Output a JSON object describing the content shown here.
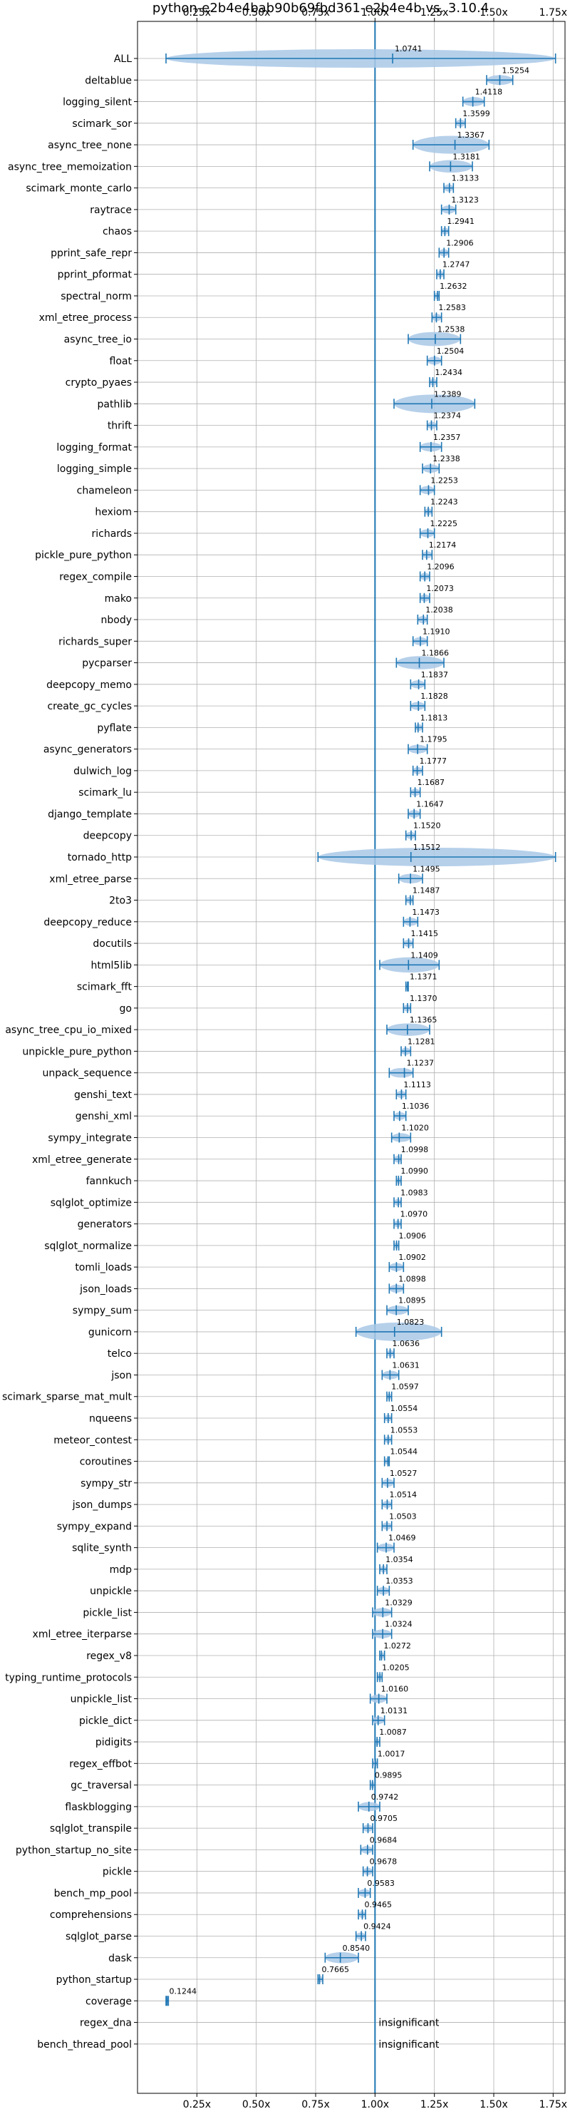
{
  "chart_data": {
    "type": "violin",
    "title": "python-e2b4e4bab90b69fbd361-e2b4e4b vs. 3.10.4",
    "xlabel": "",
    "ylabel": "",
    "xlim": [
      0.0,
      1.8
    ],
    "xticks": [
      0.25,
      0.5,
      0.75,
      1.0,
      1.25,
      1.5,
      1.75
    ],
    "xtick_labels": [
      "0.25x",
      "0.50x",
      "0.75x",
      "1.00x",
      "1.25x",
      "1.50x",
      "1.75x"
    ],
    "grid": true,
    "reference_line": 1.0,
    "colors": {
      "primary": "#1f77b4",
      "fill": "#a9c8e6",
      "grid": "#b0b0b0"
    },
    "insignificant_text": "insignificant",
    "rows": [
      {
        "name": "ALL",
        "value": 1.0741,
        "label": "1.0741",
        "min": 0.12,
        "max": 1.76
      },
      {
        "name": "deltablue",
        "value": 1.5254,
        "label": "1.5254",
        "min": 1.47,
        "max": 1.58
      },
      {
        "name": "logging_silent",
        "value": 1.4118,
        "label": "1.4118",
        "min": 1.37,
        "max": 1.46
      },
      {
        "name": "scimark_sor",
        "value": 1.3599,
        "label": "1.3599",
        "min": 1.34,
        "max": 1.38
      },
      {
        "name": "async_tree_none",
        "value": 1.3367,
        "label": "1.3367",
        "min": 1.16,
        "max": 1.48
      },
      {
        "name": "async_tree_memoization",
        "value": 1.3181,
        "label": "1.3181",
        "min": 1.23,
        "max": 1.41
      },
      {
        "name": "scimark_monte_carlo",
        "value": 1.3133,
        "label": "1.3133",
        "min": 1.29,
        "max": 1.33
      },
      {
        "name": "raytrace",
        "value": 1.3123,
        "label": "1.3123",
        "min": 1.28,
        "max": 1.34
      },
      {
        "name": "chaos",
        "value": 1.2941,
        "label": "1.2941",
        "min": 1.28,
        "max": 1.31
      },
      {
        "name": "pprint_safe_repr",
        "value": 1.2906,
        "label": "1.2906",
        "min": 1.27,
        "max": 1.31
      },
      {
        "name": "pprint_pformat",
        "value": 1.2747,
        "label": "1.2747",
        "min": 1.26,
        "max": 1.29
      },
      {
        "name": "spectral_norm",
        "value": 1.2632,
        "label": "1.2632",
        "min": 1.25,
        "max": 1.27
      },
      {
        "name": "xml_etree_process",
        "value": 1.2583,
        "label": "1.2583",
        "min": 1.24,
        "max": 1.28
      },
      {
        "name": "async_tree_io",
        "value": 1.2538,
        "label": "1.2538",
        "min": 1.14,
        "max": 1.36
      },
      {
        "name": "float",
        "value": 1.2504,
        "label": "1.2504",
        "min": 1.22,
        "max": 1.28
      },
      {
        "name": "crypto_pyaes",
        "value": 1.2434,
        "label": "1.2434",
        "min": 1.23,
        "max": 1.26
      },
      {
        "name": "pathlib",
        "value": 1.2389,
        "label": "1.2389",
        "min": 1.08,
        "max": 1.42
      },
      {
        "name": "thrift",
        "value": 1.2374,
        "label": "1.2374",
        "min": 1.22,
        "max": 1.26
      },
      {
        "name": "logging_format",
        "value": 1.2357,
        "label": "1.2357",
        "min": 1.19,
        "max": 1.28
      },
      {
        "name": "logging_simple",
        "value": 1.2338,
        "label": "1.2338",
        "min": 1.2,
        "max": 1.27
      },
      {
        "name": "chameleon",
        "value": 1.2253,
        "label": "1.2253",
        "min": 1.19,
        "max": 1.25
      },
      {
        "name": "hexiom",
        "value": 1.2243,
        "label": "1.2243",
        "min": 1.21,
        "max": 1.24
      },
      {
        "name": "richards",
        "value": 1.2225,
        "label": "1.2225",
        "min": 1.19,
        "max": 1.25
      },
      {
        "name": "pickle_pure_python",
        "value": 1.2174,
        "label": "1.2174",
        "min": 1.2,
        "max": 1.24
      },
      {
        "name": "regex_compile",
        "value": 1.2096,
        "label": "1.2096",
        "min": 1.19,
        "max": 1.23
      },
      {
        "name": "mako",
        "value": 1.2073,
        "label": "1.2073",
        "min": 1.19,
        "max": 1.23
      },
      {
        "name": "nbody",
        "value": 1.2038,
        "label": "1.2038",
        "min": 1.18,
        "max": 1.22
      },
      {
        "name": "richards_super",
        "value": 1.191,
        "label": "1.1910",
        "min": 1.16,
        "max": 1.22
      },
      {
        "name": "pycparser",
        "value": 1.1866,
        "label": "1.1866",
        "min": 1.09,
        "max": 1.29
      },
      {
        "name": "deepcopy_memo",
        "value": 1.1837,
        "label": "1.1837",
        "min": 1.15,
        "max": 1.21
      },
      {
        "name": "create_gc_cycles",
        "value": 1.1828,
        "label": "1.1828",
        "min": 1.15,
        "max": 1.21
      },
      {
        "name": "pyflate",
        "value": 1.1813,
        "label": "1.1813",
        "min": 1.17,
        "max": 1.2
      },
      {
        "name": "async_generators",
        "value": 1.1795,
        "label": "1.1795",
        "min": 1.14,
        "max": 1.22
      },
      {
        "name": "dulwich_log",
        "value": 1.1777,
        "label": "1.1777",
        "min": 1.16,
        "max": 1.2
      },
      {
        "name": "scimark_lu",
        "value": 1.1687,
        "label": "1.1687",
        "min": 1.15,
        "max": 1.19
      },
      {
        "name": "django_template",
        "value": 1.1647,
        "label": "1.1647",
        "min": 1.14,
        "max": 1.19
      },
      {
        "name": "deepcopy",
        "value": 1.152,
        "label": "1.1520",
        "min": 1.13,
        "max": 1.17
      },
      {
        "name": "tornado_http",
        "value": 1.1512,
        "label": "1.1512",
        "min": 0.76,
        "max": 1.76
      },
      {
        "name": "xml_etree_parse",
        "value": 1.1495,
        "label": "1.1495",
        "min": 1.1,
        "max": 1.2
      },
      {
        "name": "2to3",
        "value": 1.1487,
        "label": "1.1487",
        "min": 1.13,
        "max": 1.16
      },
      {
        "name": "deepcopy_reduce",
        "value": 1.1473,
        "label": "1.1473",
        "min": 1.12,
        "max": 1.18
      },
      {
        "name": "docutils",
        "value": 1.1415,
        "label": "1.1415",
        "min": 1.12,
        "max": 1.16
      },
      {
        "name": "html5lib",
        "value": 1.1409,
        "label": "1.1409",
        "min": 1.02,
        "max": 1.27
      },
      {
        "name": "scimark_fft",
        "value": 1.1371,
        "label": "1.1371",
        "min": 1.13,
        "max": 1.14
      },
      {
        "name": "go",
        "value": 1.137,
        "label": "1.1370",
        "min": 1.12,
        "max": 1.15
      },
      {
        "name": "async_tree_cpu_io_mixed",
        "value": 1.1365,
        "label": "1.1365",
        "min": 1.05,
        "max": 1.23
      },
      {
        "name": "unpickle_pure_python",
        "value": 1.1281,
        "label": "1.1281",
        "min": 1.11,
        "max": 1.15
      },
      {
        "name": "unpack_sequence",
        "value": 1.1237,
        "label": "1.1237",
        "min": 1.06,
        "max": 1.16
      },
      {
        "name": "genshi_text",
        "value": 1.1113,
        "label": "1.1113",
        "min": 1.09,
        "max": 1.13
      },
      {
        "name": "genshi_xml",
        "value": 1.1036,
        "label": "1.1036",
        "min": 1.08,
        "max": 1.13
      },
      {
        "name": "sympy_integrate",
        "value": 1.102,
        "label": "1.1020",
        "min": 1.07,
        "max": 1.15
      },
      {
        "name": "xml_etree_generate",
        "value": 1.0998,
        "label": "1.0998",
        "min": 1.08,
        "max": 1.11
      },
      {
        "name": "fannkuch",
        "value": 1.099,
        "label": "1.0990",
        "min": 1.09,
        "max": 1.11
      },
      {
        "name": "sqlglot_optimize",
        "value": 1.0983,
        "label": "1.0983",
        "min": 1.08,
        "max": 1.11
      },
      {
        "name": "generators",
        "value": 1.097,
        "label": "1.0970",
        "min": 1.08,
        "max": 1.11
      },
      {
        "name": "sqlglot_normalize",
        "value": 1.0906,
        "label": "1.0906",
        "min": 1.08,
        "max": 1.1
      },
      {
        "name": "tomli_loads",
        "value": 1.0902,
        "label": "1.0902",
        "min": 1.06,
        "max": 1.12
      },
      {
        "name": "json_loads",
        "value": 1.0898,
        "label": "1.0898",
        "min": 1.06,
        "max": 1.12
      },
      {
        "name": "sympy_sum",
        "value": 1.0895,
        "label": "1.0895",
        "min": 1.05,
        "max": 1.14
      },
      {
        "name": "gunicorn",
        "value": 1.0823,
        "label": "1.0823",
        "min": 0.92,
        "max": 1.28
      },
      {
        "name": "telco",
        "value": 1.0636,
        "label": "1.0636",
        "min": 1.05,
        "max": 1.08
      },
      {
        "name": "json",
        "value": 1.0631,
        "label": "1.0631",
        "min": 1.03,
        "max": 1.1
      },
      {
        "name": "scimark_sparse_mat_mult",
        "value": 1.0597,
        "label": "1.0597",
        "min": 1.05,
        "max": 1.07
      },
      {
        "name": "nqueens",
        "value": 1.0554,
        "label": "1.0554",
        "min": 1.04,
        "max": 1.07
      },
      {
        "name": "meteor_contest",
        "value": 1.0553,
        "label": "1.0553",
        "min": 1.04,
        "max": 1.07
      },
      {
        "name": "coroutines",
        "value": 1.0544,
        "label": "1.0544",
        "min": 1.04,
        "max": 1.06
      },
      {
        "name": "sympy_str",
        "value": 1.0527,
        "label": "1.0527",
        "min": 1.03,
        "max": 1.08
      },
      {
        "name": "json_dumps",
        "value": 1.0514,
        "label": "1.0514",
        "min": 1.03,
        "max": 1.07
      },
      {
        "name": "sympy_expand",
        "value": 1.0503,
        "label": "1.0503",
        "min": 1.03,
        "max": 1.07
      },
      {
        "name": "sqlite_synth",
        "value": 1.0469,
        "label": "1.0469",
        "min": 1.01,
        "max": 1.08
      },
      {
        "name": "mdp",
        "value": 1.0354,
        "label": "1.0354",
        "min": 1.02,
        "max": 1.05
      },
      {
        "name": "unpickle",
        "value": 1.0353,
        "label": "1.0353",
        "min": 1.01,
        "max": 1.06
      },
      {
        "name": "pickle_list",
        "value": 1.0329,
        "label": "1.0329",
        "min": 0.99,
        "max": 1.07
      },
      {
        "name": "xml_etree_iterparse",
        "value": 1.0324,
        "label": "1.0324",
        "min": 0.99,
        "max": 1.07
      },
      {
        "name": "regex_v8",
        "value": 1.0272,
        "label": "1.0272",
        "min": 1.02,
        "max": 1.04
      },
      {
        "name": "typing_runtime_protocols",
        "value": 1.0205,
        "label": "1.0205",
        "min": 1.01,
        "max": 1.03
      },
      {
        "name": "unpickle_list",
        "value": 1.016,
        "label": "1.0160",
        "min": 0.98,
        "max": 1.05
      },
      {
        "name": "pickle_dict",
        "value": 1.0131,
        "label": "1.0131",
        "min": 0.99,
        "max": 1.04
      },
      {
        "name": "pidigits",
        "value": 1.0087,
        "label": "1.0087",
        "min": 1.0,
        "max": 1.02
      },
      {
        "name": "regex_effbot",
        "value": 1.0017,
        "label": "1.0017",
        "min": 0.99,
        "max": 1.01
      },
      {
        "name": "gc_traversal",
        "value": 0.9895,
        "label": "0.9895",
        "min": 0.98,
        "max": 1.0
      },
      {
        "name": "flaskblogging",
        "value": 0.9742,
        "label": "0.9742",
        "min": 0.93,
        "max": 1.02
      },
      {
        "name": "sqlglot_transpile",
        "value": 0.9705,
        "label": "0.9705",
        "min": 0.95,
        "max": 0.99
      },
      {
        "name": "python_startup_no_site",
        "value": 0.9684,
        "label": "0.9684",
        "min": 0.94,
        "max": 0.99
      },
      {
        "name": "pickle",
        "value": 0.9678,
        "label": "0.9678",
        "min": 0.95,
        "max": 0.99
      },
      {
        "name": "bench_mp_pool",
        "value": 0.9583,
        "label": "0.9583",
        "min": 0.93,
        "max": 0.98
      },
      {
        "name": "comprehensions",
        "value": 0.9465,
        "label": "0.9465",
        "min": 0.93,
        "max": 0.96
      },
      {
        "name": "sqlglot_parse",
        "value": 0.9424,
        "label": "0.9424",
        "min": 0.92,
        "max": 0.96
      },
      {
        "name": "dask",
        "value": 0.854,
        "label": "0.8540",
        "min": 0.79,
        "max": 0.93
      },
      {
        "name": "python_startup",
        "value": 0.7665,
        "label": "0.7665",
        "min": 0.76,
        "max": 0.78
      },
      {
        "name": "coverage",
        "value": 0.1244,
        "label": "0.1244",
        "min": 0.12,
        "max": 0.13
      },
      {
        "name": "regex_dna",
        "value": null,
        "label": "insignificant",
        "insignificant": true
      },
      {
        "name": "bench_thread_pool",
        "value": null,
        "label": "insignificant",
        "insignificant": true
      }
    ]
  }
}
